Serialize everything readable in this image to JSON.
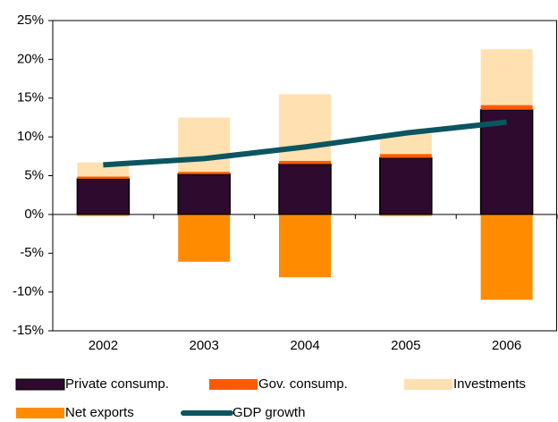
{
  "chart_data": {
    "type": "stacked-bar-line",
    "categories": [
      "2002",
      "2003",
      "2004",
      "2005",
      "2006"
    ],
    "series": [
      {
        "name": "Private consump.",
        "color": "#2e0a2e",
        "values": [
          4.6,
          5.2,
          6.5,
          7.3,
          13.5
        ]
      },
      {
        "name": "Gov. consump.",
        "color": "#ff5a00",
        "values": [
          0.3,
          0.3,
          0.4,
          0.5,
          0.6
        ]
      },
      {
        "name": "Investments",
        "color": "#ffe0b0",
        "values": [
          1.8,
          7.0,
          8.6,
          2.6,
          7.2
        ]
      },
      {
        "name": "Net exports",
        "color": "#ff8c00",
        "values": [
          -0.2,
          -6.1,
          -8.1,
          -0.2,
          -11.0
        ]
      },
      {
        "name": "GDP growth",
        "color": "#0a5560",
        "type": "line",
        "values": [
          6.4,
          7.2,
          8.7,
          10.5,
          11.9
        ]
      }
    ],
    "ylim": [
      -15,
      25
    ],
    "yticks": [
      {
        "value": -15,
        "label": "-15%"
      },
      {
        "value": -10,
        "label": "-10%"
      },
      {
        "value": -5,
        "label": "-5%"
      },
      {
        "value": 0,
        "label": "0%"
      },
      {
        "value": 5,
        "label": "5%"
      },
      {
        "value": 10,
        "label": "10%"
      },
      {
        "value": 15,
        "label": "15%"
      },
      {
        "value": 20,
        "label": "20%"
      },
      {
        "value": 25,
        "label": "25%"
      }
    ],
    "legend": "bottom"
  }
}
